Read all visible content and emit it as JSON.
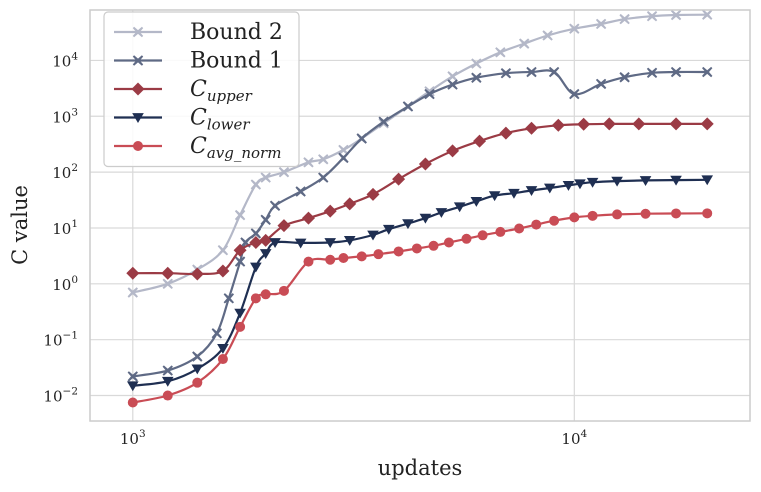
{
  "chart_data": {
    "type": "line",
    "xlabel": "updates",
    "ylabel": "C value",
    "xscale": "log",
    "yscale": "log",
    "xlim": [
      800,
      25000
    ],
    "ylim": [
      0.0035,
      80000
    ],
    "grid": true,
    "legend_position": "top-left",
    "x_ticks": [
      {
        "value": 1000,
        "base": "10",
        "exp": "3"
      },
      {
        "value": 10000,
        "base": "10",
        "exp": "4"
      }
    ],
    "y_ticks": [
      {
        "value": 0.01,
        "base": "10",
        "exp": "−2"
      },
      {
        "value": 0.1,
        "base": "10",
        "exp": "−1"
      },
      {
        "value": 1,
        "base": "10",
        "exp": "0"
      },
      {
        "value": 10,
        "base": "10",
        "exp": "1"
      },
      {
        "value": 100,
        "base": "10",
        "exp": "2"
      },
      {
        "value": 1000,
        "base": "10",
        "exp": "3"
      },
      {
        "value": 10000,
        "base": "10",
        "exp": "4"
      }
    ],
    "series": [
      {
        "name": "Bound 2",
        "name_main": "Bound 2",
        "name_sub": "",
        "color": "#b4b8c8",
        "marker": "x",
        "x": [
          1000,
          1200,
          1400,
          1600,
          1750,
          1900,
          2000,
          2200,
          2500,
          2700,
          3000,
          3300,
          3700,
          4200,
          4700,
          5300,
          6000,
          6800,
          7700,
          8700,
          10000,
          11500,
          13000,
          15000,
          17000,
          20000
        ],
        "y": [
          0.7,
          1.0,
          1.8,
          4.0,
          17,
          60,
          80,
          100,
          150,
          170,
          250,
          400,
          750,
          1500,
          2800,
          5200,
          8800,
          14000,
          20000,
          28000,
          37000,
          45000,
          55000,
          62000,
          65000,
          66000
        ]
      },
      {
        "name": "Bound 1",
        "name_main": "Bound 1",
        "name_sub": "",
        "color": "#5f6a85",
        "marker": "x",
        "x": [
          1000,
          1200,
          1400,
          1550,
          1650,
          1750,
          1800,
          1900,
          2000,
          2100,
          2400,
          2700,
          3000,
          3300,
          3700,
          4200,
          4700,
          5300,
          6000,
          7000,
          8000,
          9000,
          10000,
          11500,
          13000,
          15000,
          17000,
          20000
        ],
        "y": [
          0.022,
          0.028,
          0.05,
          0.13,
          0.55,
          2.5,
          5.5,
          8,
          14,
          25,
          45,
          80,
          180,
          400,
          800,
          1500,
          2500,
          3700,
          4900,
          5900,
          6200,
          6200,
          2500,
          3800,
          5000,
          6000,
          6200,
          6200
        ]
      },
      {
        "name": "C_upper",
        "name_main": "C",
        "name_sub": "upper",
        "color": "#9b3b45",
        "marker": "diamond",
        "x": [
          1000,
          1200,
          1400,
          1600,
          1750,
          1900,
          2000,
          2200,
          2500,
          2800,
          3100,
          3500,
          4000,
          4600,
          5300,
          6100,
          7000,
          8000,
          9200,
          10500,
          12000,
          14000,
          17000,
          20000
        ],
        "y": [
          1.55,
          1.55,
          1.5,
          1.7,
          4.0,
          5.5,
          6.0,
          11,
          15,
          20,
          27,
          40,
          75,
          140,
          240,
          360,
          500,
          610,
          690,
          720,
          730,
          730,
          730,
          730
        ]
      },
      {
        "name": "C_lower",
        "name_main": "C",
        "name_sub": "lower",
        "color": "#1f2f52",
        "marker": "triangle-down",
        "x": [
          1000,
          1200,
          1400,
          1600,
          1750,
          1900,
          2000,
          2100,
          2400,
          2800,
          3100,
          3500,
          3800,
          4200,
          4600,
          5000,
          5500,
          6000,
          6600,
          7300,
          8000,
          8800,
          9700,
          10300,
          11000,
          12500,
          14500,
          17000,
          20000
        ],
        "y": [
          0.015,
          0.018,
          0.03,
          0.07,
          0.3,
          2.0,
          3.5,
          5.5,
          5.4,
          5.5,
          6.0,
          7.5,
          9.5,
          12,
          15,
          19,
          24,
          30,
          38,
          42,
          47,
          52,
          58,
          62,
          66,
          69,
          71,
          72,
          73
        ]
      },
      {
        "name": "C_avg_norm",
        "name_main": "C",
        "name_sub": "avg_norm",
        "color": "#c94c55",
        "marker": "circle",
        "x": [
          1000,
          1200,
          1400,
          1600,
          1750,
          1900,
          2000,
          2200,
          2500,
          2800,
          3000,
          3300,
          3600,
          4000,
          4400,
          4800,
          5200,
          5700,
          6200,
          6800,
          7500,
          8200,
          9000,
          10000,
          11000,
          12500,
          14500,
          17000,
          20000
        ],
        "y": [
          0.0075,
          0.01,
          0.017,
          0.045,
          0.17,
          0.55,
          0.65,
          0.75,
          2.5,
          2.7,
          2.9,
          3.1,
          3.4,
          3.8,
          4.3,
          4.8,
          5.5,
          6.4,
          7.4,
          8.5,
          9.8,
          11.5,
          13.5,
          15.5,
          16.5,
          17.5,
          18,
          18.2,
          18.3
        ]
      }
    ]
  }
}
